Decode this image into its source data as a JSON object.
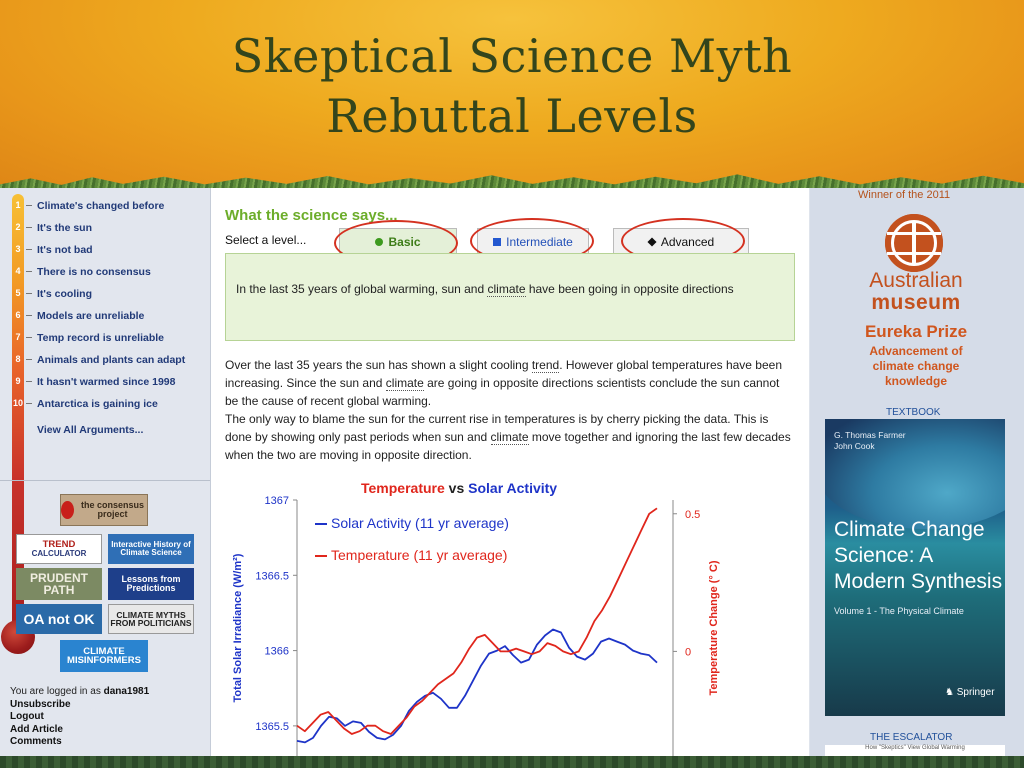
{
  "slide": {
    "title_line1": "Skeptical Science Myth",
    "title_line2": "Rebuttal Levels"
  },
  "sidebar": {
    "myths": [
      {
        "num": "1",
        "label": "Climate's changed before"
      },
      {
        "num": "2",
        "label": "It's the sun"
      },
      {
        "num": "3",
        "label": "It's not bad"
      },
      {
        "num": "4",
        "label": "There is no consensus"
      },
      {
        "num": "5",
        "label": "It's cooling"
      },
      {
        "num": "6",
        "label": "Models are unreliable"
      },
      {
        "num": "7",
        "label": "Temp record is unreliable"
      },
      {
        "num": "8",
        "label": "Animals and plants can adapt"
      },
      {
        "num": "9",
        "label": "It hasn't warmed since 1998"
      },
      {
        "num": "10",
        "label": "Antarctica is gaining ice"
      }
    ],
    "view_all": "View All Arguments...",
    "badges": {
      "consensus": "the consensus project",
      "trend_top": "TREND",
      "trend_bottom": "CALCULATOR",
      "history": "Interactive History of Climate Science",
      "prudent": "PRUDENT PATH",
      "lessons": "Lessons from Predictions",
      "oaok": "OA not OK",
      "myths": "CLIMATE MYTHS FROM POLITICIANS",
      "misinform_top": "CLIMATE",
      "misinform_bottom": "MISINFORMERS"
    },
    "login": {
      "prefix": "You are logged in as ",
      "user": "dana1981",
      "links": [
        "Unsubscribe",
        "Logout",
        "Add Article",
        "Comments"
      ]
    }
  },
  "main": {
    "heading": "What the science says...",
    "select_label": "Select a level...",
    "tabs": {
      "basic": "Basic",
      "intermediate": "Intermediate",
      "advanced": "Advanced"
    },
    "summary": {
      "part1": "In the last 35 years of global warming, sun and ",
      "link": "climate",
      "part2": " have been going in opposite directions"
    },
    "body": {
      "p1a": "Over the last 35 years the sun has shown a slight cooling ",
      "p1_trend": "trend",
      "p1b": ". However global temperatures have been increasing. Since the sun and ",
      "p1_climate": "climate",
      "p1c": " are going in opposite directions scientists conclude the sun cannot be the cause of recent global warming.",
      "p2a": "The only way to blame the sun for the current rise in temperatures is by cherry picking the data. This is done by showing only past periods when sun and ",
      "p2_climate": "climate",
      "p2b": " move together and ignoring the last few decades when the two are moving in opposite direction."
    },
    "chart_title": {
      "temp": "Temperature",
      "vs": " vs ",
      "solar": "Solar Activity"
    }
  },
  "right": {
    "winner": "Winner of the 2011",
    "aus_line1": "Australian",
    "aus_line2": "museum",
    "eureka": "Eureka Prize",
    "eureka_sub": "Advancement of climate change knowledge",
    "textbook_label": "TEXTBOOK",
    "book_authors": [
      "G. Thomas Farmer",
      "John Cook"
    ],
    "book_title": "Climate Change Science: A Modern Synthesis",
    "book_volume": "Volume 1 - The Physical Climate",
    "book_publisher": "Springer",
    "escalator_label": "THE ESCALATOR",
    "escalator_caption": "How \"Skeptics\" View Global Warming"
  },
  "colors": {
    "solar": "#1e34c8",
    "temperature": "#e0261c",
    "highlight_ring": "#d43120"
  },
  "chart_data": {
    "type": "line",
    "title": "Temperature vs Solar Activity",
    "ylabel": "Total Solar Irradiance (W/m²)",
    "y2label": "Temperature Change (° C)",
    "ylim": [
      1365.3,
      1367
    ],
    "y_ticks": [
      "1367",
      "1366.5",
      "1366",
      "1365.5"
    ],
    "y2lim": [
      -0.38,
      0.55
    ],
    "y2_ticks": [
      "0.5",
      "0"
    ],
    "legend_position": "top-left",
    "series": [
      {
        "name": "Solar Activity (11 yr average)",
        "axis": "left",
        "color": "#1e34c8",
        "values": [
          1365.4,
          1365.39,
          1365.42,
          1365.5,
          1365.56,
          1365.55,
          1365.5,
          1365.53,
          1365.52,
          1365.46,
          1365.42,
          1365.41,
          1365.44,
          1365.5,
          1365.6,
          1365.66,
          1365.7,
          1365.72,
          1365.68,
          1365.62,
          1365.62,
          1365.7,
          1365.8,
          1365.9,
          1365.98,
          1366.0,
          1366.03,
          1365.97,
          1365.92,
          1365.94,
          1366.04,
          1366.1,
          1366.14,
          1366.12,
          1366.02,
          1365.96,
          1365.94,
          1365.98,
          1366.06,
          1366.08,
          1366.06,
          1366.04,
          1366.0,
          1365.98,
          1365.97,
          1365.92
        ]
      },
      {
        "name": "Temperature (11 yr average)",
        "axis": "right",
        "color": "#e0261c",
        "values": [
          -0.27,
          -0.29,
          -0.26,
          -0.23,
          -0.22,
          -0.25,
          -0.28,
          -0.3,
          -0.29,
          -0.27,
          -0.27,
          -0.29,
          -0.3,
          -0.27,
          -0.24,
          -0.2,
          -0.18,
          -0.15,
          -0.12,
          -0.1,
          -0.08,
          -0.04,
          0.01,
          0.05,
          0.06,
          0.03,
          0.0,
          0.0,
          0.01,
          0.0,
          -0.01,
          0.0,
          0.03,
          0.02,
          0.0,
          -0.01,
          0.0,
          0.05,
          0.11,
          0.15,
          0.2,
          0.26,
          0.32,
          0.38,
          0.44,
          0.5,
          0.52
        ]
      }
    ]
  }
}
